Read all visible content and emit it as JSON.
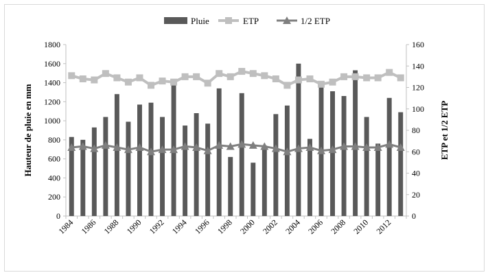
{
  "chart_data": {
    "type": "bar",
    "legend_position": "top",
    "grid": false,
    "colors": {
      "Pluie": "#595959",
      "ETP": "#bfbfbf",
      "1/2 ETP": "#7f7f7f"
    },
    "x": [
      1984,
      1985,
      1986,
      1987,
      1988,
      1989,
      1990,
      1991,
      1992,
      1993,
      1994,
      1995,
      1996,
      1997,
      1998,
      1999,
      2000,
      2001,
      2002,
      2003,
      2004,
      2005,
      2006,
      2007,
      2008,
      2009,
      2010,
      2011,
      2012,
      2013
    ],
    "x_tick_labels": [
      "1984",
      "1986",
      "1988",
      "1990",
      "1992",
      "1994",
      "1996",
      "1998",
      "2000",
      "2002",
      "2004",
      "2006",
      "2008",
      "2010",
      "2012"
    ],
    "ylabel": "Hauteur de pluie en mm",
    "y2label": "ETP et 1/2 ETP",
    "ylim": [
      0,
      1800
    ],
    "y_ticks": [
      0,
      200,
      400,
      600,
      800,
      1000,
      1200,
      1400,
      1600,
      1800
    ],
    "y2lim": [
      0,
      160
    ],
    "y2_ticks": [
      0,
      20,
      40,
      60,
      80,
      100,
      120,
      140,
      160
    ],
    "series": [
      {
        "name": "Pluie",
        "kind": "bar",
        "axis": "left",
        "values": [
          830,
          800,
          930,
          1040,
          1280,
          990,
          1170,
          1190,
          1040,
          1390,
          950,
          1080,
          970,
          1340,
          620,
          1290,
          560,
          740,
          1070,
          1160,
          1600,
          810,
          1350,
          1310,
          1260,
          1530,
          1040,
          760,
          1240,
          1090
        ]
      },
      {
        "name": "ETP",
        "kind": "line",
        "marker": "square",
        "axis": "right",
        "values": [
          131,
          128,
          127,
          133,
          129,
          125,
          129,
          122,
          126,
          125,
          130,
          130,
          124,
          133,
          130,
          135,
          133,
          131,
          128,
          122,
          127,
          128,
          123,
          125,
          130,
          130,
          129,
          129,
          134,
          129
        ]
      },
      {
        "name": "1/2 ETP",
        "kind": "line",
        "marker": "triangle",
        "axis": "right",
        "values": [
          64,
          65,
          63,
          66,
          64,
          62,
          64,
          60,
          62,
          62,
          65,
          64,
          61,
          66,
          65,
          67,
          66,
          65,
          63,
          60,
          63,
          64,
          61,
          62,
          65,
          65,
          64,
          64,
          67,
          64
        ]
      }
    ]
  }
}
